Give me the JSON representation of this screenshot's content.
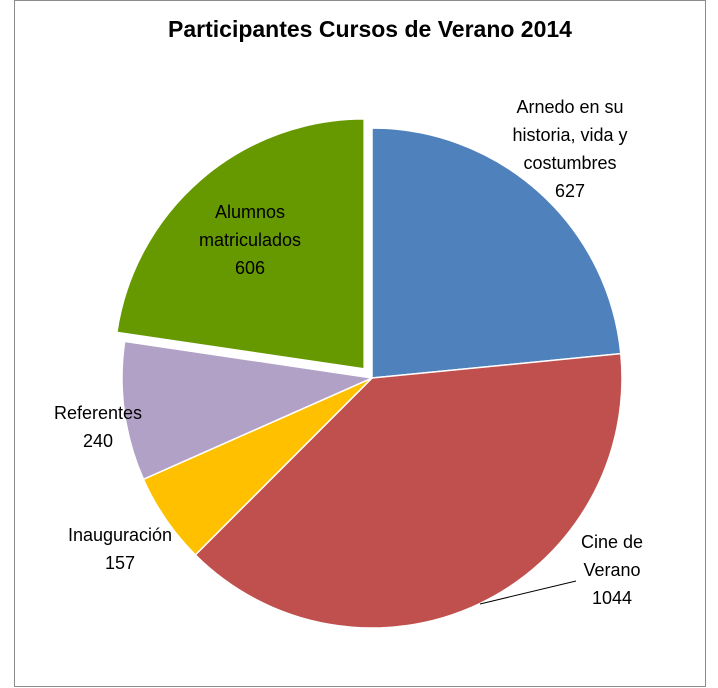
{
  "chart_data": {
    "type": "pie",
    "title": "Participantes Cursos de Verano 2014",
    "categories": [
      "Arnedo en su historia, vida y costumbres",
      "Cine de Verano",
      "Inauguración",
      "Referentes",
      "Alumnos matriculados"
    ],
    "values": [
      627,
      1044,
      157,
      240,
      606
    ],
    "colors": [
      "#4f81bd",
      "#c0504d",
      "#ffc000",
      "#b2a1c7",
      "#669900"
    ],
    "exploded": [
      4
    ]
  }
}
